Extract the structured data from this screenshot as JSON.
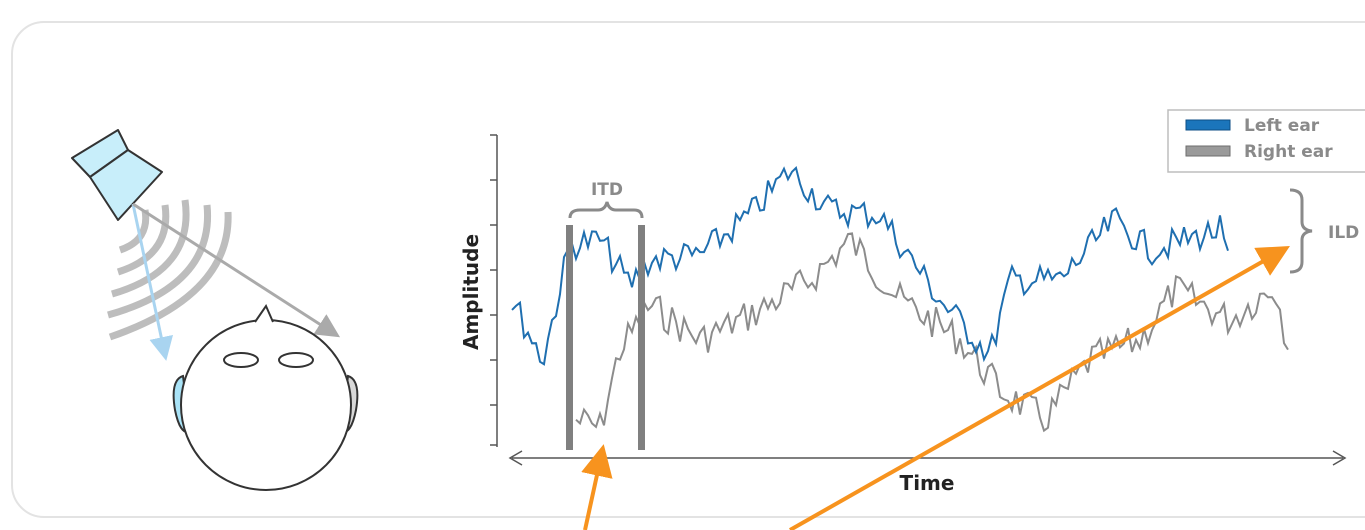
{
  "labels": {
    "itd": "ITD",
    "ild": "ILD",
    "y_axis": "Amplitude",
    "x_axis": "Time"
  },
  "legend": [
    {
      "name": "Left ear"
    },
    {
      "name": "Right ear"
    }
  ]
}
